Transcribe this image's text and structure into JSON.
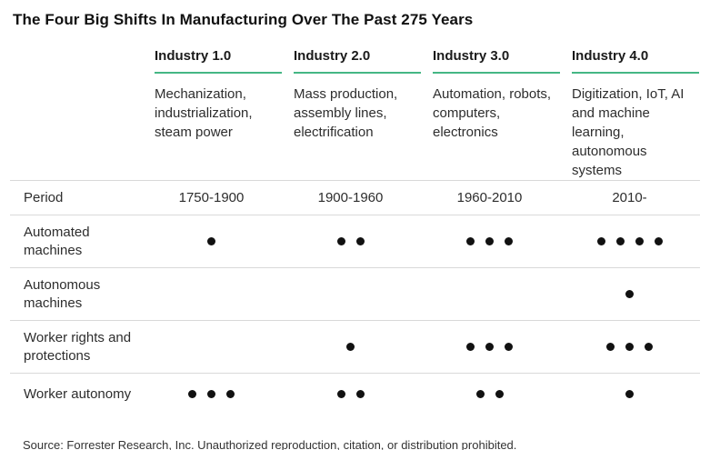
{
  "title": "The Four Big Shifts In Manufacturing Over The Past 275 Years",
  "accent_color": "#45b784",
  "dot_color": "#111111",
  "columns": [
    {
      "label": "Industry 1.0",
      "description": "Mechanization, industrialization, steam power",
      "period": "1750-1900"
    },
    {
      "label": "Industry 2.0",
      "description": "Mass production, assembly lines, electrification",
      "period": "1900-1960"
    },
    {
      "label": "Industry 3.0",
      "description": "Automation, robots, computers, electronics",
      "period": "1960-2010"
    },
    {
      "label": "Industry 4.0",
      "description": "Digitization, IoT, AI and machine learning, autonomous systems",
      "period": "2010-"
    }
  ],
  "rows": [
    {
      "label": "Period",
      "values": [
        "1750-1900",
        "1900-1960",
        "1960-2010",
        "2010-"
      ]
    },
    {
      "label": "Automated machines",
      "dots": [
        1,
        2,
        3,
        4
      ]
    },
    {
      "label": "Autonomous machines",
      "dots": [
        0,
        0,
        0,
        1
      ]
    },
    {
      "label": "Worker rights and protections",
      "dots": [
        0,
        1,
        3,
        3
      ]
    },
    {
      "label": "Worker autonomy",
      "dots": [
        3,
        2,
        2,
        1
      ]
    }
  ],
  "source": "Source: Forrester Research, Inc. Unauthorized reproduction, citation, or distribution prohibited.",
  "chart_data": {
    "type": "table",
    "title": "The Four Big Shifts In Manufacturing Over The Past 275 Years",
    "categories": [
      "Industry 1.0",
      "Industry 2.0",
      "Industry 3.0",
      "Industry 4.0"
    ],
    "category_descriptions": [
      "Mechanization, industrialization, steam power",
      "Mass production, assembly lines, electrification",
      "Automation, robots, computers, electronics",
      "Digitization, IoT, AI and machine learning, autonomous systems"
    ],
    "periods": [
      "1750-1900",
      "1900-1960",
      "1960-2010",
      "2010-"
    ],
    "series": [
      {
        "name": "Automated machines",
        "values": [
          1,
          2,
          3,
          4
        ]
      },
      {
        "name": "Autonomous machines",
        "values": [
          0,
          0,
          0,
          1
        ]
      },
      {
        "name": "Worker rights and protections",
        "values": [
          0,
          1,
          3,
          3
        ]
      },
      {
        "name": "Worker autonomy",
        "values": [
          3,
          2,
          2,
          1
        ]
      }
    ],
    "value_encoding": "dot count (0-4 filled dots per cell)",
    "source": "Source: Forrester Research, Inc. Unauthorized reproduction, citation, or distribution prohibited."
  }
}
